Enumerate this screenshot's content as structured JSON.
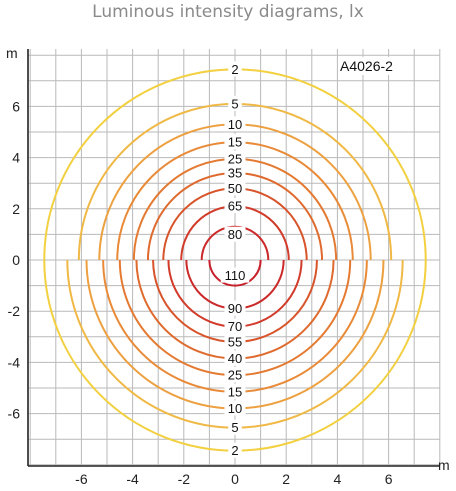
{
  "chart_data": {
    "type": "contour",
    "title": "Luminous intensity diagrams, lx",
    "model_label": "A4026-2",
    "x_unit": "m",
    "y_unit": "m",
    "xlim": [
      -8,
      8
    ],
    "ylim": [
      -8,
      8
    ],
    "x_ticks": [
      -6,
      -4,
      -2,
      0,
      2,
      4,
      6
    ],
    "y_ticks": [
      6,
      4,
      2,
      0,
      -2,
      -4,
      -6
    ],
    "grid": true,
    "upper_half": [
      {
        "lux": 80,
        "radius": 1.3,
        "color": "#cc2a2a"
      },
      {
        "lux": 65,
        "radius": 2.1,
        "color": "#d23a2a"
      },
      {
        "lux": 50,
        "radius": 2.8,
        "color": "#d8542a"
      },
      {
        "lux": 35,
        "radius": 3.4,
        "color": "#df6a2e"
      },
      {
        "lux": 25,
        "radius": 3.95,
        "color": "#e47a32"
      },
      {
        "lux": 15,
        "radius": 4.6,
        "color": "#e98a38"
      },
      {
        "lux": 10,
        "radius": 5.3,
        "color": "#eda040"
      },
      {
        "lux": 5,
        "radius": 6.1,
        "color": "#f0b845"
      },
      {
        "lux": 2,
        "radius": 7.45,
        "color": "#f2d040"
      }
    ],
    "lower_half": [
      {
        "lux": 110,
        "radius": 1.0,
        "color": "#c8202a"
      },
      {
        "lux": 90,
        "radius": 1.9,
        "color": "#cc2a2a"
      },
      {
        "lux": 70,
        "radius": 2.6,
        "color": "#d23a2a"
      },
      {
        "lux": 55,
        "radius": 3.2,
        "color": "#d8542a"
      },
      {
        "lux": 40,
        "radius": 3.85,
        "color": "#df6a2e"
      },
      {
        "lux": 25,
        "radius": 4.5,
        "color": "#e47a32"
      },
      {
        "lux": 15,
        "radius": 5.15,
        "color": "#e98a38"
      },
      {
        "lux": 10,
        "radius": 5.8,
        "color": "#eda040"
      },
      {
        "lux": 5,
        "radius": 6.55,
        "color": "#f0b845"
      },
      {
        "lux": 2,
        "radius": 7.45,
        "color": "#f2d040"
      }
    ]
  }
}
